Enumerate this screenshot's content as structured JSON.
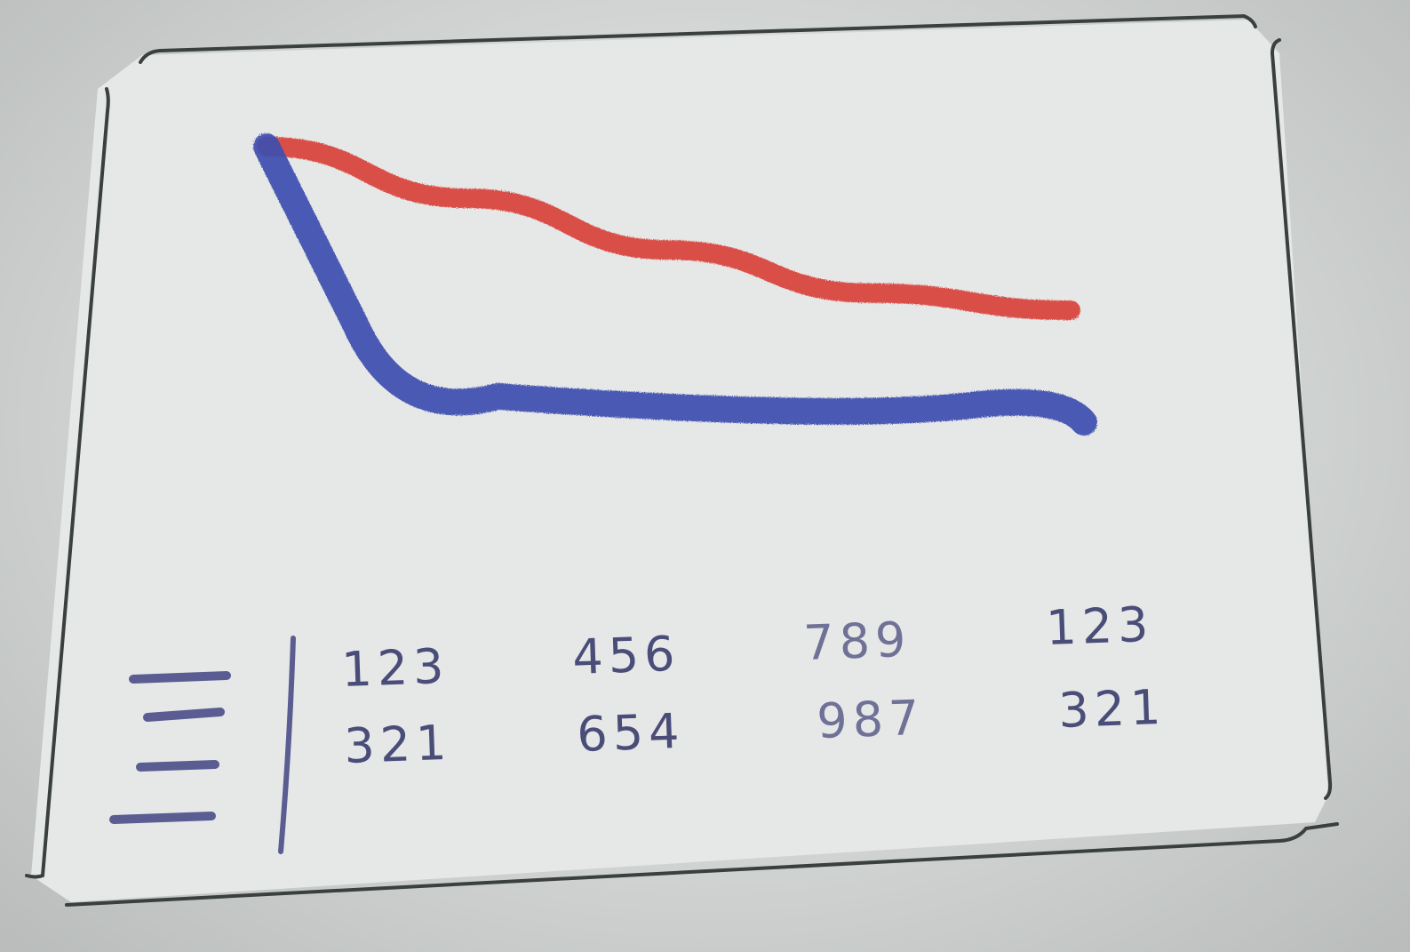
{
  "colors": {
    "frame": "#3a403e",
    "series_top": "#d9423a",
    "series_bottom": "#3d4fb0",
    "menu_ink": "#5a5c92",
    "text_ink": "#4a4d78"
  },
  "icons": [
    "hamburger-menu-icon"
  ],
  "chart_data": {
    "type": "line",
    "series": [
      {
        "color": "#d9423a",
        "values": [
          10,
          8.8,
          7.6,
          6.6,
          6.2
        ]
      },
      {
        "color": "#3d4fb0",
        "values": [
          10,
          4.2,
          3.8,
          3.8,
          3.6
        ]
      }
    ]
  },
  "table": {
    "rows": [
      [
        "123",
        "456",
        "789",
        "123"
      ],
      [
        "321",
        "654",
        "987",
        "321"
      ]
    ]
  }
}
